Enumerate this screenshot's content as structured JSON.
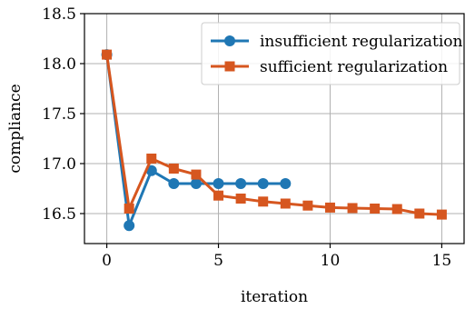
{
  "chart_data": {
    "type": "line",
    "title": "",
    "xlabel": "iteration",
    "ylabel": "compliance",
    "xlim": [
      -1,
      16
    ],
    "ylim": [
      16.2,
      18.5
    ],
    "xticks": [
      0,
      5,
      10,
      15
    ],
    "xtick_labels": [
      "0",
      "5",
      "10",
      "15"
    ],
    "yticks": [
      16.5,
      17.0,
      17.5,
      18.0,
      18.5
    ],
    "ytick_labels": [
      "16.5",
      "17.0",
      "17.5",
      "18.0",
      "18.5"
    ],
    "grid": true,
    "legend_position": "top-right",
    "series": [
      {
        "name": "insufficient regularization",
        "color": "#1f77b4",
        "marker": "circle",
        "x": [
          0,
          1,
          2,
          3,
          4,
          5,
          6,
          7,
          8
        ],
        "y": [
          18.09,
          16.38,
          16.93,
          16.8,
          16.8,
          16.8,
          16.8,
          16.8,
          16.8
        ]
      },
      {
        "name": "sufficient regularization",
        "color": "#d6561f",
        "marker": "square",
        "x": [
          0,
          1,
          2,
          3,
          4,
          5,
          6,
          7,
          8,
          9,
          10,
          11,
          12,
          13,
          14,
          15
        ],
        "y": [
          18.09,
          16.55,
          17.05,
          16.95,
          16.89,
          16.68,
          16.65,
          16.62,
          16.6,
          16.58,
          16.56,
          16.555,
          16.55,
          16.545,
          16.5,
          16.49
        ]
      }
    ]
  }
}
